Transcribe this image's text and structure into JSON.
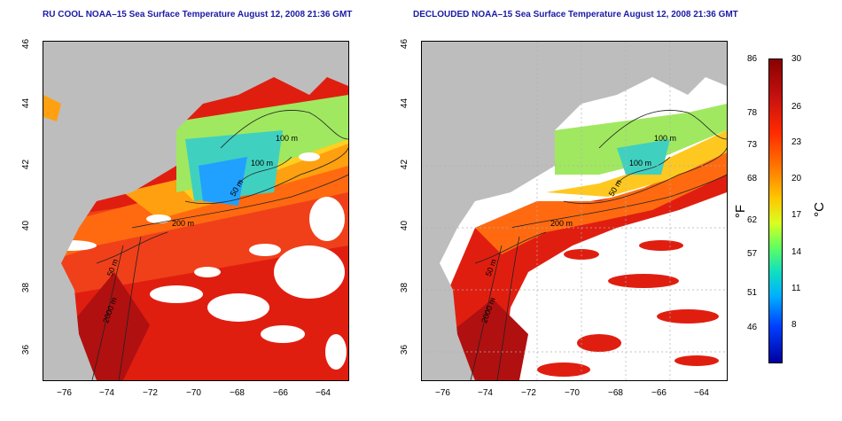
{
  "titles": {
    "left": "RU COOL NOAA–15 Sea Surface Temperature August 12, 2008 21:36 GMT",
    "right": "DECLOUDED NOAA–15 Sea Surface Temperature August 12, 2008 21:36 GMT"
  },
  "axes": {
    "x_ticks": [
      "−76",
      "−74",
      "−72",
      "−70",
      "−68",
      "−66",
      "−64"
    ],
    "y_ticks": [
      "46",
      "44",
      "42",
      "40",
      "38",
      "36"
    ]
  },
  "contours": {
    "left": [
      "100 m",
      "100 m",
      "50 m",
      "200 m",
      "50 m",
      "2000 m"
    ],
    "right": [
      "100 m",
      "100 m",
      "50 m",
      "200 m",
      "50 m",
      "2000 m"
    ]
  },
  "colorbar": {
    "fahrenheit": [
      "86",
      "78",
      "73",
      "68",
      "62",
      "57",
      "51",
      "46"
    ],
    "celsius": [
      "30",
      "26",
      "23",
      "20",
      "17",
      "14",
      "11",
      "8"
    ],
    "f_unit": "°F",
    "c_unit": "°C"
  },
  "colors": {
    "title": "#1a1aa6",
    "land": "#bdbdbd"
  }
}
